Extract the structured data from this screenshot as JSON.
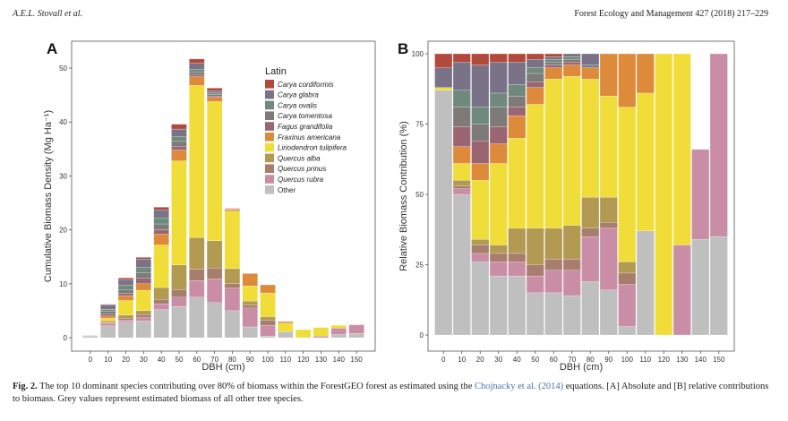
{
  "header": {
    "authors": "A.E.L. Stovall et al.",
    "journal": "Forest Ecology and Management 427 (2018) 217–229"
  },
  "caption": {
    "label": "Fig. 2.",
    "text_before": "The top 10 dominant species contributing over 80% of biomass within the ForestGEO forest as estimated using the",
    "citation": "Chojnacky et al. (2014)",
    "text_after": "equations. [A] Absolute and [B] relative contributions to biomass. Grey values represent estimated biomass of all other tree species."
  },
  "colors": {
    "Carya cordiformis": "#b24a3c",
    "Carya glabra": "#7a7388",
    "Carya ovalis": "#6f8a7d",
    "Carya tomentosa": "#7e7a78",
    "Fagus grandifolia": "#9b6572",
    "Fraxinus americana": "#dd8a3a",
    "Liriodendron tulipifera": "#f1dd3a",
    "Quercus alba": "#b29a52",
    "Quercus prinus": "#a77d6d",
    "Quercus rubra": "#c98ea5",
    "Other": "#bfbfbf"
  },
  "chart_data": [
    {
      "panel": "A",
      "type": "bar",
      "stacked": true,
      "xlabel": "DBH (cm)",
      "ylabel": "Cumulative Biomass Density (Mg Ha⁻¹)",
      "ylim": [
        0,
        53
      ],
      "yticks": [
        0,
        10,
        20,
        30,
        40,
        50
      ],
      "categories": [
        "0",
        "10",
        "20",
        "30",
        "40",
        "50",
        "60",
        "70",
        "80",
        "90",
        "100",
        "110",
        "120",
        "130",
        "140",
        "150"
      ],
      "legend": {
        "title": "Latin",
        "position": "top-right"
      },
      "series": [
        {
          "name": "Other",
          "values": [
            0.3,
            2.2,
            2.9,
            3.1,
            5.2,
            5.8,
            7.5,
            6.5,
            5.0,
            2.0,
            0.3,
            1.1,
            0,
            0,
            0.6,
            0.8
          ]
        },
        {
          "name": "Quercus rubra",
          "values": [
            0.1,
            0.5,
            0.4,
            0.6,
            1.1,
            1.7,
            3.1,
            4.4,
            4.2,
            3.5,
            2.0,
            0,
            0,
            0.3,
            1.2,
            1.6
          ]
        },
        {
          "name": "Quercus prinus",
          "values": [
            0,
            0.1,
            0.3,
            0.6,
            0.8,
            1.4,
            2.1,
            2.0,
            0.8,
            0.5,
            1.0,
            0,
            0,
            0,
            0,
            0
          ]
        },
        {
          "name": "Quercus alba",
          "values": [
            0,
            0.3,
            0.6,
            0.7,
            2.2,
            4.6,
            5.9,
            5.1,
            2.8,
            0.8,
            0.6,
            0,
            0,
            0,
            0,
            0
          ]
        },
        {
          "name": "Liriodendron tulipifera",
          "values": [
            0,
            0.5,
            2.7,
            3.8,
            7.9,
            19.3,
            28.2,
            25.8,
            10.7,
            2.8,
            4.4,
            1.6,
            1.5,
            1.6,
            0.5,
            0
          ]
        },
        {
          "name": "Fraxinus americana",
          "values": [
            0,
            0.4,
            0.9,
            1.2,
            2.0,
            2.0,
            1.6,
            0.8,
            0.3,
            2.3,
            1.5,
            0.3,
            0,
            0,
            0,
            0
          ]
        },
        {
          "name": "Fagus grandifolia",
          "values": [
            0,
            0.4,
            0.4,
            1.0,
            0.8,
            0.7,
            0.4,
            0.2,
            0,
            0,
            0,
            0,
            0,
            0,
            0,
            0
          ]
        },
        {
          "name": "Carya tomentosa",
          "values": [
            0,
            0.5,
            0.7,
            1.0,
            1.1,
            0.9,
            0.5,
            0.3,
            0,
            0,
            0,
            0,
            0,
            0,
            0,
            0
          ]
        },
        {
          "name": "Carya ovalis",
          "values": [
            0,
            0.4,
            0.8,
            1.0,
            1.1,
            0.9,
            0.5,
            0.3,
            0,
            0,
            0,
            0,
            0,
            0,
            0,
            0
          ]
        },
        {
          "name": "Carya glabra",
          "values": [
            0,
            0.8,
            1.1,
            1.6,
            1.5,
            1.4,
            1.1,
            0.4,
            0.1,
            0,
            0,
            0,
            0,
            0,
            0,
            0
          ]
        },
        {
          "name": "Carya cordiformis",
          "values": [
            0,
            0.1,
            0.3,
            0.3,
            0.5,
            0.9,
            0.8,
            0.5,
            0.1,
            0,
            0,
            0,
            0,
            0,
            0,
            0
          ]
        }
      ]
    },
    {
      "panel": "B",
      "type": "bar",
      "stacked": true,
      "xlabel": "DBH (cm)",
      "ylabel": "Relative Biomass Contribution (%)",
      "ylim": [
        0,
        100
      ],
      "yticks": [
        0,
        25,
        50,
        75,
        100
      ],
      "categories": [
        "0",
        "10",
        "20",
        "30",
        "40",
        "50",
        "60",
        "70",
        "80",
        "90",
        "100",
        "110",
        "120",
        "130",
        "140",
        "150"
      ],
      "series": [
        {
          "name": "Other",
          "values": [
            87,
            50,
            26,
            21,
            21,
            15,
            15,
            14,
            19,
            16,
            3,
            37,
            0,
            0,
            34,
            35
          ]
        },
        {
          "name": "Quercus rubra",
          "values": [
            0,
            2,
            3,
            5,
            5,
            6,
            8,
            9,
            16,
            22,
            15,
            0,
            0,
            32,
            32,
            65
          ]
        },
        {
          "name": "Quercus prinus",
          "values": [
            0,
            1,
            3,
            3,
            3,
            4,
            4,
            4,
            3,
            2,
            4,
            0,
            0,
            0,
            0,
            0
          ]
        },
        {
          "name": "Quercus alba",
          "values": [
            0,
            2,
            2,
            3,
            9,
            13,
            11,
            12,
            11,
            9,
            4,
            0,
            0,
            0,
            0,
            0
          ]
        },
        {
          "name": "Liriodendron tulipifera",
          "values": [
            1,
            6,
            21,
            29,
            32,
            44,
            53,
            53,
            42,
            36,
            55,
            49,
            100,
            68,
            0,
            0
          ]
        },
        {
          "name": "Fraxinus americana",
          "values": [
            0,
            6,
            6,
            7,
            8,
            6,
            4,
            4,
            4,
            15,
            19,
            14,
            0,
            0,
            0,
            0
          ]
        },
        {
          "name": "Fagus grandifolia",
          "values": [
            0,
            7,
            8,
            6,
            3,
            2,
            1,
            1,
            0,
            0,
            0,
            0,
            0,
            0,
            0,
            0
          ]
        },
        {
          "name": "Carya tomentosa",
          "values": [
            0,
            7,
            6,
            7,
            4,
            3,
            1,
            1,
            1,
            0,
            0,
            0,
            0,
            0,
            0,
            0
          ]
        },
        {
          "name": "Carya ovalis",
          "values": [
            0,
            6,
            6,
            5,
            4,
            2,
            1,
            1,
            0,
            0,
            0,
            0,
            0,
            0,
            0,
            0
          ]
        },
        {
          "name": "Carya glabra",
          "values": [
            7,
            10,
            15,
            11,
            8,
            3,
            1,
            1,
            4,
            0,
            0,
            0,
            0,
            0,
            0,
            0
          ]
        },
        {
          "name": "Carya cordiformis",
          "values": [
            5,
            3,
            4,
            3,
            3,
            2,
            1,
            0,
            0,
            0,
            0,
            0,
            0,
            0,
            0,
            0
          ]
        }
      ]
    }
  ]
}
